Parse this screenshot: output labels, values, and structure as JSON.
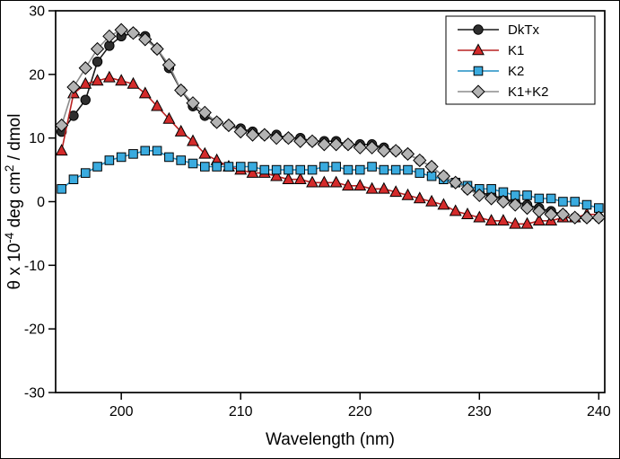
{
  "figure": {
    "xlabel": "Wavelength (nm)",
    "ylabel": "θ x 10⁻⁴ deg cm² / dmol"
  },
  "colors": {
    "axis": "#000000",
    "background": "#ffffff",
    "dktx": "#2e2e2e",
    "k1": "#d42b2b",
    "k2": "#3aabdf",
    "k1k2": "#b3b3b3"
  },
  "chart_data": {
    "type": "line",
    "title": "",
    "xlabel": "Wavelength (nm)",
    "ylabel": "θ x 10⁻⁴ deg cm² / dmol",
    "ylabel_parts": [
      {
        "text": "θ x 10",
        "sup": false
      },
      {
        "text": "-4",
        "sup": true
      },
      {
        "text": " deg cm",
        "sup": false
      },
      {
        "text": "2",
        "sup": true
      },
      {
        "text": " / dmol",
        "sup": false
      }
    ],
    "xlim": [
      194.5,
      240.5
    ],
    "ylim": [
      -30,
      30
    ],
    "xticks": [
      200,
      210,
      220,
      230,
      240
    ],
    "yticks": [
      -30,
      -20,
      -10,
      0,
      10,
      20,
      30
    ],
    "grid": false,
    "legend_position": "top-right",
    "legend_entries": [
      "DkTx",
      "K1",
      "K2",
      "K1+K2"
    ],
    "x": [
      195,
      196,
      197,
      198,
      199,
      200,
      201,
      202,
      203,
      204,
      205,
      206,
      207,
      208,
      209,
      210,
      211,
      212,
      213,
      214,
      215,
      216,
      217,
      218,
      219,
      220,
      221,
      222,
      223,
      224,
      225,
      226,
      227,
      228,
      229,
      230,
      231,
      232,
      233,
      234,
      235,
      236,
      237,
      238,
      239,
      240
    ],
    "series": [
      {
        "name": "DkTx",
        "marker": "circle",
        "color": "#2e2e2e",
        "line_color": "#1a1a1a",
        "values": [
          11,
          13.5,
          16,
          22,
          24.5,
          26,
          26.5,
          26,
          24,
          21,
          17.5,
          15,
          13.5,
          12.5,
          12,
          11.5,
          11,
          10.5,
          10.5,
          10,
          10,
          9.5,
          9.5,
          9.5,
          9,
          9,
          9,
          8.5,
          8,
          7.5,
          6.5,
          5.5,
          4,
          3,
          2,
          1.5,
          1,
          0.5,
          0,
          -0.5,
          -1,
          -1.5,
          -2,
          -2.5,
          -2.5,
          -2.5
        ]
      },
      {
        "name": "K1",
        "marker": "triangle",
        "color": "#d42b2b",
        "line_color": "#b92222",
        "values": [
          8,
          17,
          18.5,
          19,
          19.5,
          19,
          18.5,
          17,
          15,
          13,
          11,
          9.5,
          7.5,
          6.5,
          5.5,
          5,
          4.5,
          4.5,
          4,
          3.5,
          3.5,
          3,
          3,
          3,
          2.5,
          2.5,
          2,
          2,
          1.5,
          1,
          0.5,
          0,
          -0.5,
          -1.5,
          -2,
          -2.5,
          -3,
          -3,
          -3.5,
          -3.5,
          -3,
          -3,
          -2.5,
          -2.5,
          -2,
          -2
        ]
      },
      {
        "name": "K2",
        "marker": "square",
        "color": "#3aabdf",
        "line_color": "#1f8ec4",
        "values": [
          2,
          3.5,
          4.5,
          5.5,
          6.5,
          7,
          7.5,
          8,
          8,
          7,
          6.5,
          6,
          5.5,
          5.5,
          5.5,
          5.5,
          5.5,
          5,
          5,
          5,
          5,
          5,
          5.5,
          5.5,
          5,
          5,
          5.5,
          5,
          5,
          5,
          4.5,
          4,
          3.5,
          3,
          2.5,
          2,
          2,
          1.5,
          1,
          1,
          0.5,
          0.5,
          0,
          0,
          -0.5,
          -1
        ]
      },
      {
        "name": "K1+K2",
        "marker": "diamond",
        "color": "#b3b3b3",
        "line_color": "#8c8c8c",
        "values": [
          12,
          18,
          21,
          24,
          26,
          27,
          26.5,
          25.5,
          24,
          21.5,
          17.5,
          15.5,
          14,
          12.5,
          12,
          11,
          10.5,
          10.5,
          10,
          10,
          9.5,
          9.5,
          9,
          9,
          9,
          8.5,
          8.5,
          8,
          8,
          7.5,
          6.5,
          5.5,
          4,
          3,
          2,
          1,
          0.5,
          0,
          -0.5,
          -1,
          -1.5,
          -2,
          -2,
          -2.5,
          -2.5,
          -2.5
        ]
      }
    ]
  }
}
